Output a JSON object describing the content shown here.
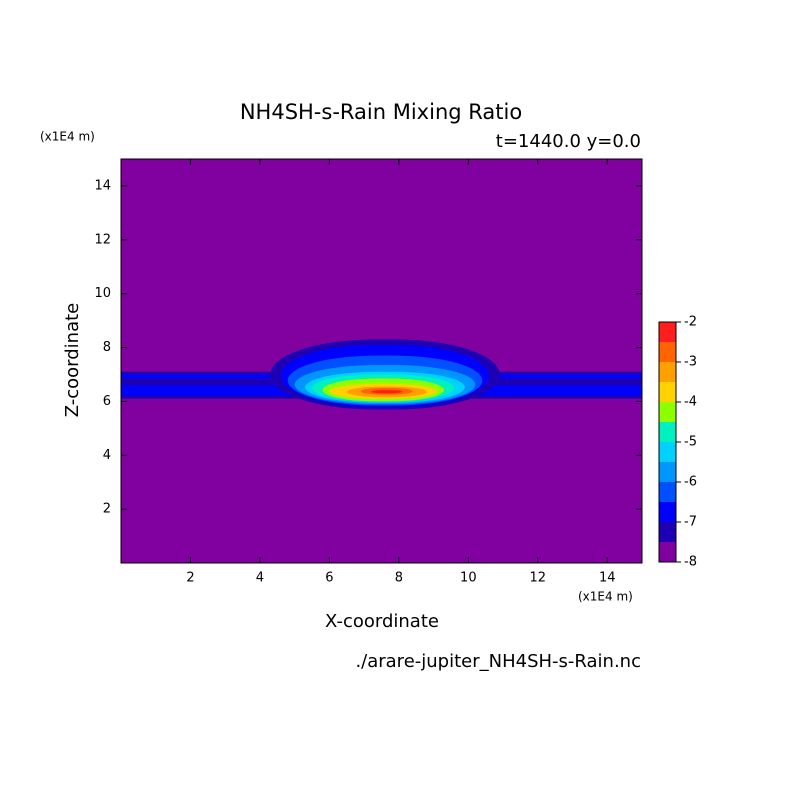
{
  "chart_data": {
    "type": "contour",
    "title": "NH4SH-s-Rain Mixing Ratio",
    "subtitle": "t=1440.0 y=0.0",
    "x_label": "X-coordinate",
    "y_label": "Z-coordinate",
    "x_unit": "(x1E4 m)",
    "y_unit": "(x1E4 m)",
    "source": "./arare-jupiter_NH4SH-s-Rain.nc",
    "xlim": [
      0,
      15
    ],
    "xticks": [
      2,
      4,
      6,
      8,
      10,
      12,
      14
    ],
    "ylim": [
      0,
      15
    ],
    "yticks": [
      2,
      4,
      6,
      8,
      10,
      12,
      14
    ],
    "colorbar_lim": [
      -8,
      -2
    ],
    "colorbar_ticks": [
      -8,
      -7,
      -6,
      -5,
      -4,
      -3,
      -2
    ],
    "levels": [
      -8,
      -7.5,
      -7,
      -6.5,
      -6,
      -5.5,
      -5,
      -4.5,
      -4,
      -3.5,
      -3,
      -2.5
    ],
    "colors": [
      "#8000a0",
      "#1e00b4",
      "#0000ff",
      "#0050ff",
      "#0096ff",
      "#00d2ff",
      "#00f0c0",
      "#8cff00",
      "#ffd200",
      "#ffa000",
      "#ff6400",
      "#ff1e1e",
      "#ffaaaa"
    ]
  }
}
